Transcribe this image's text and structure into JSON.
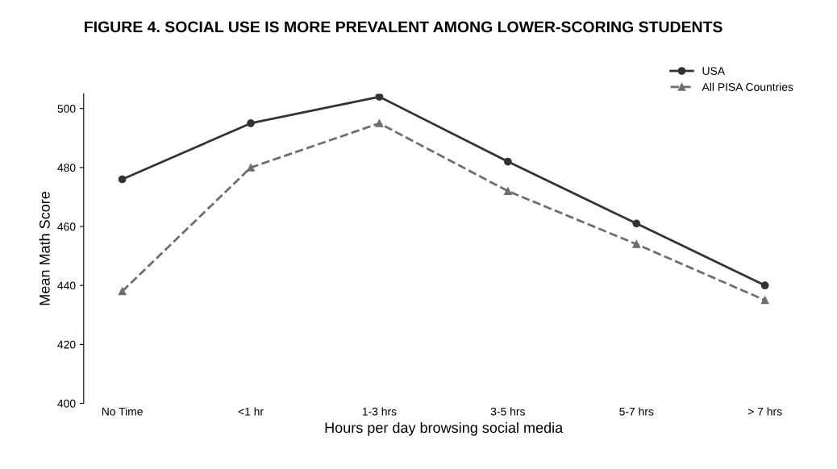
{
  "chart_data": {
    "type": "line",
    "title": "FIGURE 4. SOCIAL USE IS MORE PREVALENT AMONG LOWER-SCORING STUDENTS",
    "xlabel": "Hours per day browsing social media",
    "ylabel": "Mean Math Score",
    "categories": [
      "No Time",
      "<1 hr",
      "1-3 hrs",
      "3-5 hrs",
      "5-7 hrs",
      "> 7 hrs"
    ],
    "series": [
      {
        "name": "USA",
        "color": "#333333",
        "values": [
          476,
          495,
          504,
          482,
          461,
          440
        ],
        "marker": "circle",
        "line_style": "solid"
      },
      {
        "name": "All PISA Countries",
        "color": "#6e6e6e",
        "values": [
          438,
          480,
          495,
          472,
          454,
          435
        ],
        "marker": "triangle",
        "line_style": "dashed"
      }
    ],
    "ylim": [
      400,
      505
    ],
    "yticks": [
      400,
      420,
      440,
      460,
      480,
      500
    ],
    "grid": false,
    "legend": "top right"
  }
}
